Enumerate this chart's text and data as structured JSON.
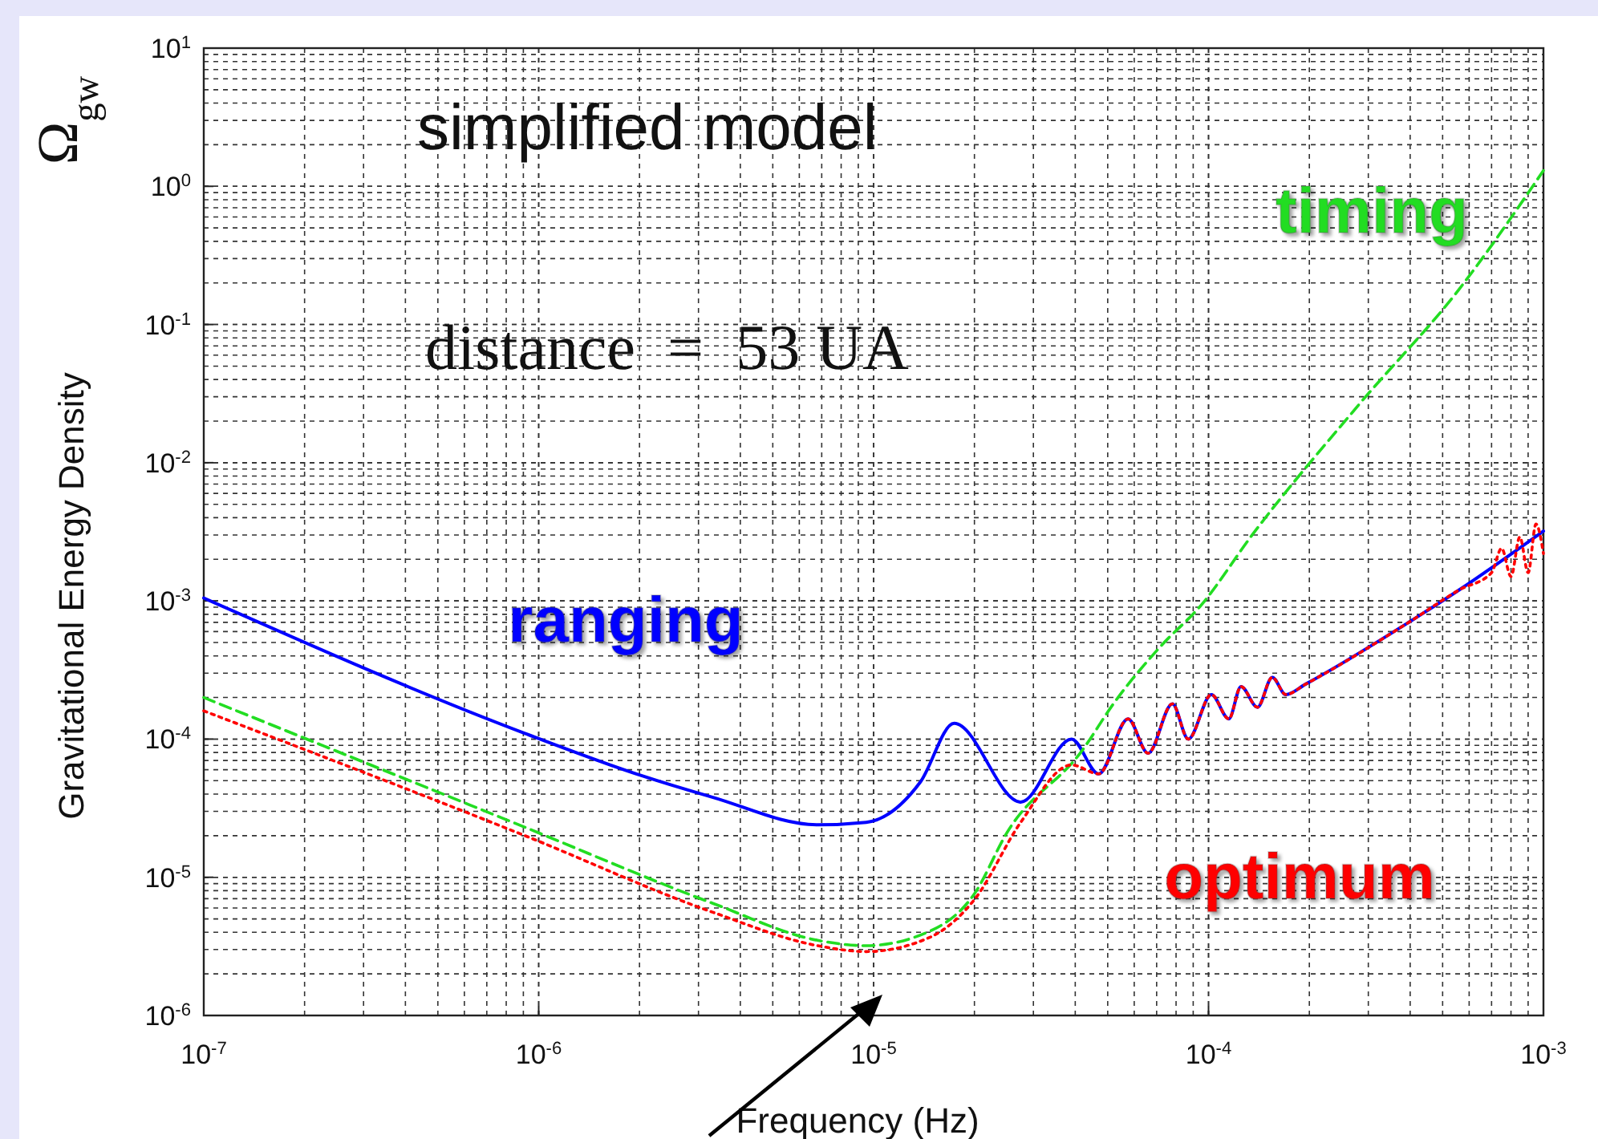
{
  "chart_data": {
    "type": "line",
    "xlabel": "Frequency (Hz)",
    "ylabel": "Gravitational Energy Density",
    "annotations": [
      "Ω$_{gw}$",
      "simplified model",
      "distance  =  53 UA"
    ],
    "xlim": [
      1e-07,
      0.001
    ],
    "ylim": [
      1e-06,
      10
    ],
    "log": "xy",
    "grid": true,
    "xticks": [
      {
        "value": 1e-07,
        "label": "10$^{-7}$"
      },
      {
        "value": 1e-06,
        "label": "10$^{-6}$"
      },
      {
        "value": 1e-05,
        "label": "10$^{-5}$"
      },
      {
        "value": 0.0001,
        "label": "10$^{-4}$"
      },
      {
        "value": 0.001,
        "label": "10$^{-3}$"
      }
    ],
    "yticks": [
      {
        "value": 1e-06,
        "label": "10$^{-6}$"
      },
      {
        "value": 1e-05,
        "label": "10$^{-5}$"
      },
      {
        "value": 0.0001,
        "label": "10$^{-4}$"
      },
      {
        "value": 0.001,
        "label": "10$^{-3}$"
      },
      {
        "value": 0.01,
        "label": "10$^{-2}$"
      },
      {
        "value": 0.1,
        "label": "10$^{-1}$"
      },
      {
        "value": 1,
        "label": "10$^{0}$"
      },
      {
        "value": 10,
        "label": "10$^{1}$"
      }
    ],
    "series": [
      {
        "name": "ranging",
        "color": "#0000ff",
        "line_style": "solid",
        "x": [
          1e-07,
          9.1e-07,
          2e-06,
          3.3e-06,
          6.8e-06,
          9.5e-06,
          1.38e-05,
          1.74e-05,
          2.75e-05,
          3.9e-05,
          4.7e-05,
          5.75e-05,
          6.6e-05,
          7.8e-05,
          8.7e-05,
          0.000102,
          0.000115,
          0.000125,
          0.00014,
          0.000155,
          0.00017,
          0.000195,
          0.0004,
          0.00056,
          0.001
        ],
        "values": [
          0.00105,
          0.00011,
          5.5e-05,
          3.8e-05,
          2.4e-05,
          2.5e-05,
          4.9e-05,
          0.00013,
          3.5e-05,
          0.0001,
          5.6e-05,
          0.00014,
          7.9e-05,
          0.00018,
          0.0001,
          0.00021,
          0.00014,
          0.00024,
          0.00017,
          0.00028,
          0.00021,
          0.00025,
          0.00071,
          0.0012,
          0.0032
        ]
      },
      {
        "name": "timing",
        "color": "#22dd22",
        "line_style": "dashed",
        "x": [
          1e-07,
          9.1e-07,
          3.3e-06,
          6.8e-06,
          9.5e-06,
          1.48e-05,
          2e-05,
          2.5e-05,
          4.2e-05,
          5.2e-05,
          7.2e-05,
          9.5e-05,
          0.000135,
          0.00028,
          0.00056,
          0.001
        ],
        "values": [
          0.0002,
          2.3e-05,
          6.5e-06,
          3.5e-06,
          3.2e-06,
          4.1e-06,
          7.6e-06,
          2.1e-05,
          8.3e-05,
          0.00018,
          0.00047,
          0.00093,
          0.003,
          0.026,
          0.18,
          1.3
        ]
      },
      {
        "name": "optimum",
        "color": "#ff0000",
        "line_style": "dotted",
        "x": [
          1e-07,
          9.1e-07,
          3.3e-06,
          6.8e-06,
          9.5e-06,
          1.48e-05,
          2e-05,
          2.75e-05,
          3.9e-05,
          4.7e-05,
          5.75e-05,
          6.6e-05,
          7.8e-05,
          8.7e-05,
          0.000102,
          0.000115,
          0.000125,
          0.00014,
          0.000155,
          0.00017,
          0.000195,
          0.0004,
          0.00056,
          0.0007,
          0.00075,
          0.0008,
          0.00085,
          0.0009,
          0.00095,
          0.001
        ],
        "values": [
          0.00016,
          2e-05,
          5.6e-06,
          3.2e-06,
          2.9e-06,
          3.7e-06,
          6.9e-06,
          2.5e-05,
          6.5e-05,
          5.6e-05,
          0.00014,
          7.9e-05,
          0.00018,
          0.0001,
          0.00021,
          0.00014,
          0.00024,
          0.00017,
          0.00028,
          0.00021,
          0.00025,
          0.00071,
          0.0012,
          0.0016,
          0.0024,
          0.0015,
          0.0029,
          0.0016,
          0.0036,
          0.0022
        ]
      }
    ]
  }
}
